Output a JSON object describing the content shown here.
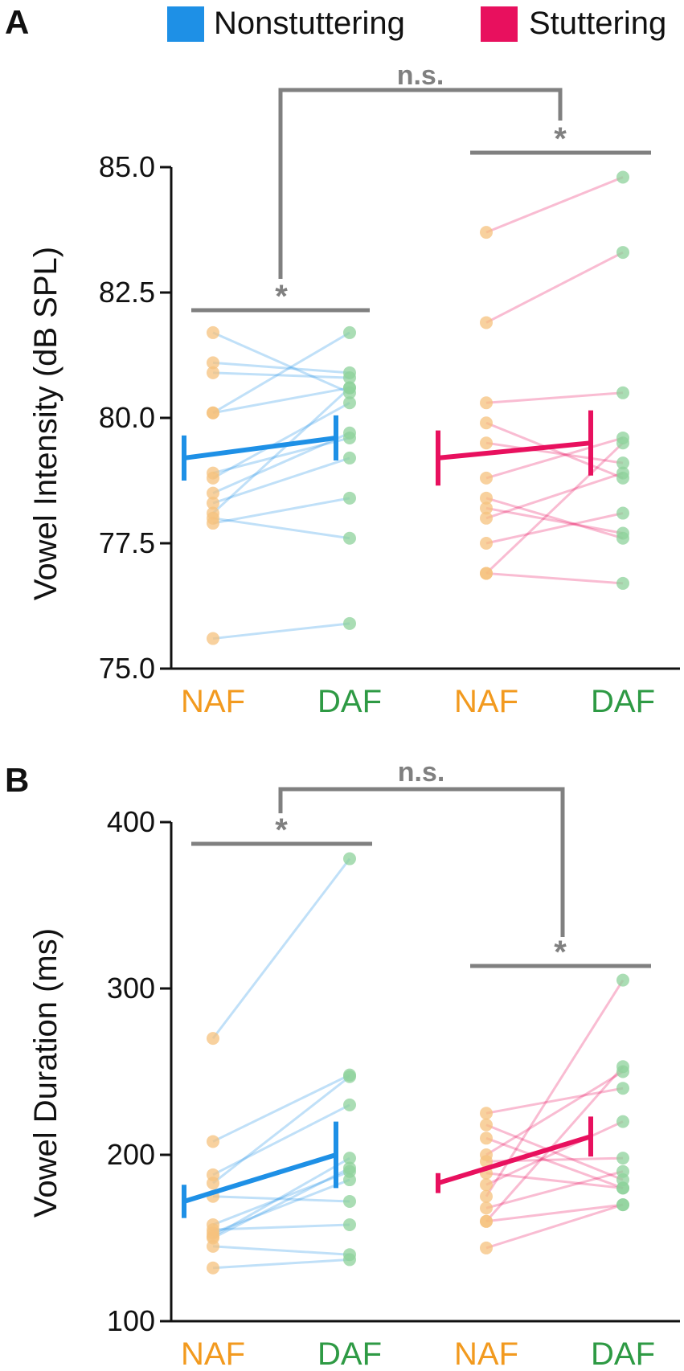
{
  "colors": {
    "nonstuttering": "#1e90e6",
    "stuttering": "#e8105e",
    "naf": "#f29a1f",
    "daf": "#2e9a44",
    "naf_point": "#f6c27e",
    "daf_point": "#8ed19b",
    "bracket": "#808080",
    "axis": "#111111"
  },
  "legend": [
    {
      "name": "Nonstuttering",
      "color": "#1e90e6"
    },
    {
      "name": "Stuttering",
      "color": "#e8105e"
    }
  ],
  "chart_data": [
    {
      "panel": "A",
      "type": "scatter",
      "ylabel": "Vowel Intensity (dB SPL)",
      "ylim": [
        75.0,
        85.0
      ],
      "yticks": [
        "75.0",
        "77.5",
        "80.0",
        "82.5",
        "85.0"
      ],
      "condition_labels": [
        "NAF",
        "DAF",
        "NAF",
        "DAF"
      ],
      "groups": [
        {
          "name": "Nonstuttering",
          "pairs": [
            [
              81.7,
              80.5
            ],
            [
              81.1,
              80.9
            ],
            [
              80.9,
              80.8
            ],
            [
              80.1,
              80.6
            ],
            [
              80.1,
              81.7
            ],
            [
              78.9,
              79.6
            ],
            [
              78.8,
              80.3
            ],
            [
              78.5,
              79.7
            ],
            [
              78.3,
              79.2
            ],
            [
              78.1,
              80.6
            ],
            [
              77.9,
              78.4
            ],
            [
              78.0,
              77.6
            ],
            [
              75.6,
              75.9
            ]
          ],
          "mean": [
            79.2,
            79.6
          ],
          "error": [
            0.45,
            0.45
          ]
        },
        {
          "name": "Stuttering",
          "pairs": [
            [
              83.7,
              84.8
            ],
            [
              81.9,
              83.3
            ],
            [
              80.3,
              80.5
            ],
            [
              79.9,
              78.8
            ],
            [
              79.5,
              79.1
            ],
            [
              78.8,
              79.6
            ],
            [
              78.4,
              77.6
            ],
            [
              78.2,
              77.7
            ],
            [
              78.0,
              78.9
            ],
            [
              77.5,
              78.1
            ],
            [
              76.9,
              79.5
            ],
            [
              76.9,
              76.7
            ]
          ],
          "mean": [
            79.2,
            79.5
          ],
          "error": [
            0.55,
            0.65
          ]
        }
      ],
      "significance": [
        {
          "between": "Nonstuttering NAF vs DAF",
          "label": "*"
        },
        {
          "between": "Stuttering NAF vs DAF",
          "label": "*"
        },
        {
          "between": "Nonstuttering vs Stuttering",
          "label": "n.s."
        }
      ]
    },
    {
      "panel": "B",
      "type": "scatter",
      "ylabel": "Vowel Duration (ms)",
      "ylim": [
        100,
        400
      ],
      "yticks": [
        "100",
        "200",
        "300",
        "400"
      ],
      "condition_labels": [
        "NAF",
        "DAF",
        "NAF",
        "DAF"
      ],
      "groups": [
        {
          "name": "Nonstuttering",
          "pairs": [
            [
              270,
              378
            ],
            [
              208,
              248
            ],
            [
              188,
              230
            ],
            [
              183,
              247
            ],
            [
              175,
              172
            ],
            [
              158,
              190
            ],
            [
              155,
              158
            ],
            [
              153,
              185
            ],
            [
              151,
              198
            ],
            [
              150,
              192
            ],
            [
              145,
              140
            ],
            [
              132,
              137
            ]
          ],
          "mean": [
            172,
            200
          ],
          "error": [
            10,
            20
          ]
        },
        {
          "name": "Stuttering",
          "pairs": [
            [
              225,
              240
            ],
            [
              218,
              185
            ],
            [
              210,
              180
            ],
            [
              200,
              250
            ],
            [
              196,
              198
            ],
            [
              189,
              180
            ],
            [
              182,
              220
            ],
            [
              175,
              305
            ],
            [
              168,
              190
            ],
            [
              160,
              253
            ],
            [
              160,
              170
            ],
            [
              144,
              170
            ]
          ],
          "mean": [
            183,
            211
          ],
          "error": [
            6,
            12
          ]
        }
      ],
      "significance": [
        {
          "between": "Nonstuttering NAF vs DAF",
          "label": "*"
        },
        {
          "between": "Stuttering NAF vs DAF",
          "label": "*"
        },
        {
          "between": "Nonstuttering vs Stuttering",
          "label": "n.s."
        }
      ]
    }
  ]
}
